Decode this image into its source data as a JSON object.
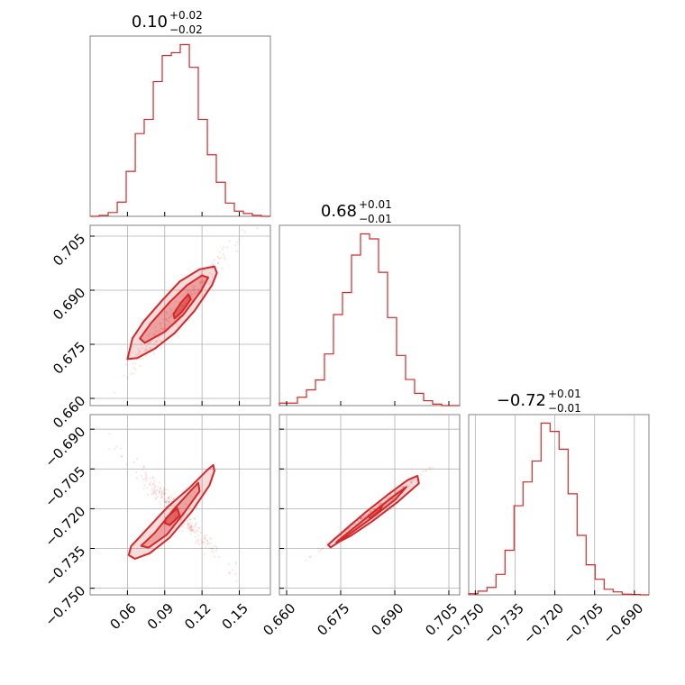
{
  "chart_data": {
    "type": "corner",
    "color": "#d62728",
    "grid": true,
    "parameters": [
      {
        "title_value": "0.10",
        "title_plus": "+0.02",
        "title_minus": "−0.02",
        "range": [
          0.03,
          0.175
        ],
        "ticks": [
          0.06,
          0.09,
          0.12,
          0.15
        ],
        "tick_labels": [
          "0.06",
          "0.09",
          "0.12",
          "0.15"
        ],
        "hist": {
          "edges": [
            0.03,
            0.0373,
            0.0445,
            0.0518,
            0.059,
            0.0663,
            0.0735,
            0.0808,
            0.088,
            0.0953,
            0.1025,
            0.1098,
            0.117,
            0.1243,
            0.1315,
            0.1388,
            0.146,
            0.1533,
            0.1605,
            0.1678,
            0.175
          ],
          "counts": [
            0,
            2,
            8,
            30,
            95,
            175,
            205,
            285,
            340,
            346,
            363,
            315,
            205,
            130,
            72,
            28,
            11,
            6,
            2,
            0
          ]
        }
      },
      {
        "title_value": "0.68",
        "title_plus": "+0.01",
        "title_minus": "−0.01",
        "range": [
          0.658,
          0.708
        ],
        "ticks": [
          0.66,
          0.675,
          0.69,
          0.705
        ],
        "tick_labels": [
          "0.660",
          "0.675",
          "0.690",
          "0.705"
        ],
        "hist": {
          "edges": [
            0.658,
            0.6605,
            0.663,
            0.6655,
            0.668,
            0.6705,
            0.673,
            0.6755,
            0.678,
            0.6805,
            0.683,
            0.6855,
            0.688,
            0.6905,
            0.693,
            0.6955,
            0.698,
            0.7005,
            0.703,
            0.7055,
            0.708
          ],
          "counts": [
            5,
            5,
            17,
            32,
            52,
            105,
            185,
            230,
            306,
            349,
            339,
            271,
            179,
            102,
            53,
            25,
            10,
            3,
            0,
            0
          ]
        }
      },
      {
        "title_value": "−0.72",
        "title_plus": "+0.01",
        "title_minus": "−0.01",
        "range": [
          -0.7525,
          -0.6845
        ],
        "ticks": [
          -0.75,
          -0.735,
          -0.72,
          -0.705,
          -0.69
        ],
        "tick_labels": [
          "−0.750",
          "−0.735",
          "−0.720",
          "−0.705",
          "−0.690"
        ],
        "hist": {
          "edges": [
            -0.7525,
            -0.749,
            -0.7456,
            -0.7422,
            -0.7388,
            -0.7354,
            -0.732,
            -0.7286,
            -0.7252,
            -0.7218,
            -0.7184,
            -0.715,
            -0.7116,
            -0.7082,
            -0.7048,
            -0.7014,
            -0.698,
            -0.6946,
            -0.6912,
            -0.6878,
            -0.6845
          ],
          "counts": [
            3,
            10,
            20,
            55,
            120,
            240,
            304,
            360,
            462,
            440,
            392,
            272,
            160,
            81,
            42,
            15,
            8,
            2,
            1,
            0
          ]
        }
      }
    ],
    "pairs": [
      {
        "x_param": 0,
        "y_param": 1,
        "contour_outer": [
          [
            0.06,
            0.6709
          ],
          [
            0.064,
            0.6766
          ],
          [
            0.073,
            0.6813
          ],
          [
            0.088,
            0.6872
          ],
          [
            0.102,
            0.6924
          ],
          [
            0.118,
            0.6958
          ],
          [
            0.13,
            0.6966
          ],
          [
            0.132,
            0.6948
          ],
          [
            0.128,
            0.6914
          ],
          [
            0.114,
            0.6843
          ],
          [
            0.098,
            0.6781
          ],
          [
            0.082,
            0.6738
          ],
          [
            0.068,
            0.6712
          ]
        ],
        "contour_inner": [
          [
            0.07,
            0.6766
          ],
          [
            0.079,
            0.6809
          ],
          [
            0.094,
            0.6867
          ],
          [
            0.108,
            0.6914
          ],
          [
            0.12,
            0.6941
          ],
          [
            0.125,
            0.6935
          ],
          [
            0.119,
            0.6897
          ],
          [
            0.105,
            0.6832
          ],
          [
            0.09,
            0.6785
          ],
          [
            0.074,
            0.6754
          ]
        ],
        "contour_core": [
          [
            0.097,
            0.6834
          ],
          [
            0.103,
            0.6865
          ],
          [
            0.109,
            0.6889
          ],
          [
            0.111,
            0.6875
          ],
          [
            0.104,
            0.6841
          ],
          [
            0.098,
            0.6822
          ]
        ],
        "scatter": {
          "center": [
            0.1,
            0.684
          ],
          "slope": 0.4,
          "along_sigma": 0.022,
          "across_sigma": 0.0016,
          "count": 260,
          "seed": 7
        }
      },
      {
        "x_param": 0,
        "y_param": 2,
        "contour_outer": [
          [
            0.061,
            -0.7375
          ],
          [
            0.063,
            -0.7341
          ],
          [
            0.074,
            -0.7286
          ],
          [
            0.092,
            -0.7195
          ],
          [
            0.11,
            -0.7121
          ],
          [
            0.124,
            -0.7055
          ],
          [
            0.129,
            -0.7035
          ],
          [
            0.13,
            -0.7057
          ],
          [
            0.126,
            -0.7112
          ],
          [
            0.112,
            -0.7209
          ],
          [
            0.094,
            -0.7309
          ],
          [
            0.078,
            -0.7368
          ],
          [
            0.066,
            -0.7389
          ]
        ],
        "contour_inner": [
          [
            0.071,
            -0.734
          ],
          [
            0.082,
            -0.7291
          ],
          [
            0.097,
            -0.7204
          ],
          [
            0.11,
            -0.7137
          ],
          [
            0.117,
            -0.7102
          ],
          [
            0.118,
            -0.7134
          ],
          [
            0.106,
            -0.7213
          ],
          [
            0.092,
            -0.7297
          ],
          [
            0.077,
            -0.7347
          ]
        ],
        "contour_core": [
          [
            0.091,
            -0.7236
          ],
          [
            0.1,
            -0.7198
          ],
          [
            0.102,
            -0.7226
          ],
          [
            0.094,
            -0.7262
          ],
          [
            0.09,
            -0.7254
          ]
        ],
        "scatter": {
          "center": [
            0.1,
            -0.721
          ],
          "slope": -0.5,
          "along_sigma": 0.022,
          "across_sigma": 0.002,
          "count": 240,
          "seed": 11
        }
      },
      {
        "x_param": 1,
        "y_param": 2,
        "contour_outer": [
          [
            0.6715,
            -0.7336
          ],
          [
            0.6734,
            -0.7313
          ],
          [
            0.6815,
            -0.7218
          ],
          [
            0.688,
            -0.7148
          ],
          [
            0.6936,
            -0.7092
          ],
          [
            0.6963,
            -0.7076
          ],
          [
            0.6967,
            -0.7104
          ],
          [
            0.6906,
            -0.7177
          ],
          [
            0.6836,
            -0.7249
          ],
          [
            0.6778,
            -0.7302
          ],
          [
            0.6748,
            -0.7323
          ],
          [
            0.6722,
            -0.7346
          ]
        ],
        "contour_inner": [
          [
            0.6738,
            -0.7326
          ],
          [
            0.6824,
            -0.7231
          ],
          [
            0.6896,
            -0.7153
          ],
          [
            0.6932,
            -0.7118
          ],
          [
            0.6902,
            -0.7165
          ],
          [
            0.6834,
            -0.7237
          ],
          [
            0.6765,
            -0.7305
          ]
        ],
        "contour_core": [
          [
            0.6826,
            -0.7228
          ],
          [
            0.6866,
            -0.7187
          ],
          [
            0.6858,
            -0.7208
          ],
          [
            0.6832,
            -0.7236
          ]
        ],
        "scatter": {
          "center": [
            0.6835,
            -0.7212
          ],
          "slope": 1.0,
          "along_sigma": 0.0095,
          "across_sigma": 0.00045,
          "count": 260,
          "seed": 23
        }
      }
    ]
  }
}
